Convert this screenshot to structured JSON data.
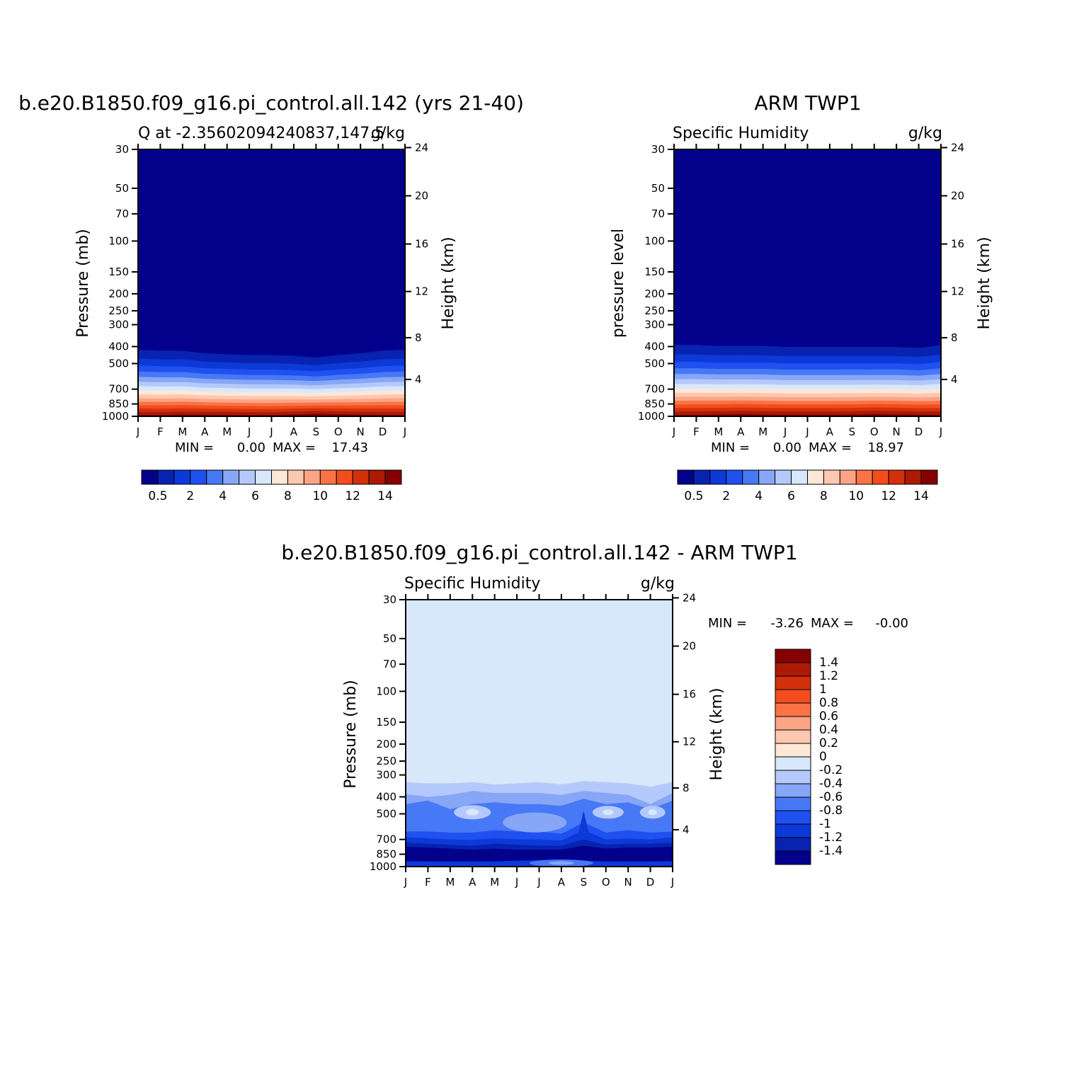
{
  "chart_data": [
    {
      "type": "heatmap",
      "title": "b.e20.B1850.f09_g16.pi_control.all.142 (yrs 21-40)",
      "subtitle_left": "Q at -2.35602094240837,147.5",
      "subtitle_right": "g/kg",
      "ylabel": "Pressure (mb)",
      "ylabel_right": "Height (km)",
      "x": [
        "J",
        "F",
        "M",
        "A",
        "M",
        "J",
        "J",
        "A",
        "S",
        "O",
        "N",
        "D",
        "J"
      ],
      "y_ticks": [
        "30",
        "50",
        "70",
        "100",
        "150",
        "200",
        "250",
        "300",
        "400",
        "500",
        "700",
        "850",
        "1000"
      ],
      "y_right_ticks": [
        "24",
        "20",
        "16",
        "12",
        "8",
        "4"
      ],
      "stats": {
        "min_label": "MIN =",
        "min": "0.00",
        "max_label": "MAX =",
        "max": "17.43"
      },
      "colorbar_labels": [
        "0.5",
        "2",
        "4",
        "6",
        "8",
        "10",
        "12",
        "14"
      ],
      "surface_values": [
        17.0,
        16.9,
        17.2,
        17.3,
        17.4,
        17.3,
        17.2,
        17.0,
        16.8,
        16.9,
        17.0,
        17.1,
        17.0
      ],
      "tropopause_pressure": [
        325,
        330,
        330,
        345,
        350,
        355,
        355,
        360,
        370,
        355,
        345,
        330,
        325
      ]
    },
    {
      "type": "heatmap",
      "title": "ARM TWP1",
      "subtitle_left": "Specific Humidity",
      "subtitle_right": "g/kg",
      "ylabel": "pressure level",
      "ylabel_right": "Height (km)",
      "x": [
        "J",
        "F",
        "M",
        "A",
        "M",
        "J",
        "J",
        "A",
        "S",
        "O",
        "N",
        "D",
        "J"
      ],
      "y_ticks": [
        "30",
        "50",
        "70",
        "100",
        "150",
        "200",
        "250",
        "300",
        "400",
        "500",
        "700",
        "850",
        "1000"
      ],
      "y_right_ticks": [
        "24",
        "20",
        "16",
        "12",
        "8",
        "4"
      ],
      "stats": {
        "min_label": "MIN =",
        "min": "0.00",
        "max_label": "MAX =",
        "max": "18.97"
      },
      "colorbar_labels": [
        "0.5",
        "2",
        "4",
        "6",
        "8",
        "10",
        "12",
        "14"
      ],
      "surface_values": [
        18.8,
        18.9,
        18.9,
        18.8,
        18.7,
        18.6,
        18.5,
        18.5,
        18.6,
        18.8,
        18.9,
        18.97,
        18.8
      ],
      "tropopause_pressure": [
        300,
        300,
        305,
        305,
        305,
        310,
        310,
        310,
        310,
        310,
        310,
        315,
        300
      ]
    },
    {
      "type": "heatmap",
      "title": "b.e20.B1850.f09_g16.pi_control.all.142 - ARM TWP1",
      "subtitle_left": "Specific Humidity",
      "subtitle_right": "g/kg",
      "ylabel": "Pressure (mb)",
      "ylabel_right": "Height (km)",
      "x": [
        "J",
        "F",
        "M",
        "A",
        "M",
        "J",
        "J",
        "A",
        "S",
        "O",
        "N",
        "D",
        "J"
      ],
      "y_ticks": [
        "30",
        "50",
        "70",
        "100",
        "150",
        "200",
        "250",
        "300",
        "400",
        "500",
        "700",
        "850",
        "1000"
      ],
      "y_right_ticks": [
        "24",
        "20",
        "16",
        "12",
        "8",
        "4"
      ],
      "stats": {
        "min_label": "MIN =",
        "min": "-3.26",
        "max_label": "MAX =",
        "max": "-0.00"
      },
      "colorbar_labels": [
        "1.4",
        "1.2",
        "1",
        "0.8",
        "0.6",
        "0.4",
        "0.2",
        "0",
        "-0.2",
        "-0.4",
        "-0.6",
        "-0.8",
        "-1",
        "-1.2",
        "-1.4"
      ],
      "colorbar_orientation": "vertical"
    }
  ],
  "colors": {
    "seq": [
      "#03008c",
      "#0723b0",
      "#0c39d8",
      "#2050f0",
      "#4778f5",
      "#88a6f6",
      "#b4c9fb",
      "#d8e8fb",
      "#fde7d7",
      "#fcc8b0",
      "#fba586",
      "#fa7346",
      "#f34d1d",
      "#d2310c",
      "#ac1a03",
      "#850000"
    ],
    "diff": [
      "#850000",
      "#ac1a03",
      "#d2310c",
      "#f34d1d",
      "#fa7346",
      "#fba586",
      "#fcc8b0",
      "#fde7d7",
      "#d8e8fb",
      "#b4c9fb",
      "#88a6f6",
      "#4778f5",
      "#2050f0",
      "#0c39d8",
      "#0723b0",
      "#03008c"
    ]
  }
}
